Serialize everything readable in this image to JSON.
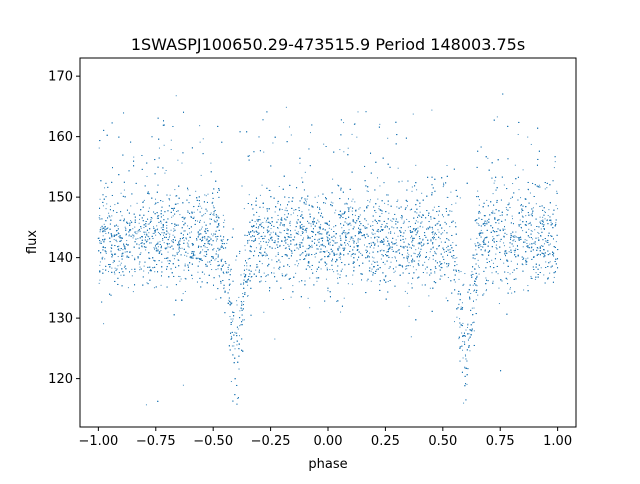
{
  "chart_data": {
    "type": "scatter",
    "title": "1SWASPJ100650.29-473515.9 Period 148003.75s",
    "xlabel": "phase",
    "ylabel": "flux",
    "xlim": [
      -1.08,
      1.08
    ],
    "ylim": [
      112,
      173
    ],
    "xticks": [
      -1.0,
      -0.75,
      -0.5,
      -0.25,
      0.0,
      0.25,
      0.5,
      0.75,
      1.0
    ],
    "xtick_labels": [
      "−1.00",
      "−0.75",
      "−0.50",
      "−0.25",
      "0.00",
      "0.25",
      "0.50",
      "0.75",
      "1.00"
    ],
    "yticks": [
      120,
      130,
      140,
      150,
      160,
      170
    ],
    "ytick_labels": [
      "120",
      "130",
      "140",
      "150",
      "160",
      "170"
    ],
    "grid": false,
    "legend": "none",
    "marker_color": "#1f77b4",
    "series": [
      {
        "x_range": [
          -1.0,
          1.0
        ],
        "baseline_flux": 143,
        "scatter_sigma": 4,
        "eclipses": [
          {
            "phase": -0.4,
            "min_flux": 121
          },
          {
            "phase": 0.6,
            "min_flux": 121
          }
        ],
        "high_flux_excursions_phases": [
          -0.8,
          -0.25,
          0.2,
          0.75
        ]
      }
    ]
  }
}
